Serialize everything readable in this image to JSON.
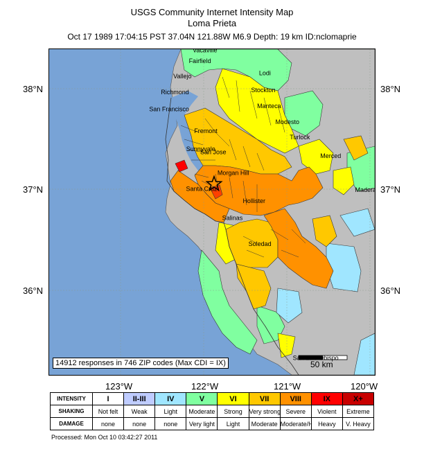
{
  "header": {
    "title": "USGS Community Internet Intensity Map",
    "subtitle": "Loma Prieta",
    "event_line": "Oct 17 1989 17:04:15 PST 37.04N 121.88W M6.9 Depth: 19 km ID:nclomaprie"
  },
  "axes": {
    "lat_labels": [
      "38°N",
      "37°N",
      "36°N"
    ],
    "lon_labels": [
      "123°W",
      "122°W",
      "121°W",
      "120°W"
    ]
  },
  "map": {
    "response_note": "14912 responses in 746 ZIP codes (Max CDI = IX)",
    "scale_label": "50 km",
    "cities": [
      {
        "name": "Vacaville",
        "lat": 38.36,
        "lon": -121.99
      },
      {
        "name": "Fairfield",
        "lat": 38.25,
        "lon": -122.05
      },
      {
        "name": "Vallejo",
        "lat": 38.1,
        "lon": -122.26
      },
      {
        "name": "Lodi",
        "lat": 38.13,
        "lon": -121.27
      },
      {
        "name": "Richmond",
        "lat": 37.94,
        "lon": -122.35
      },
      {
        "name": "Stockton",
        "lat": 37.96,
        "lon": -121.29
      },
      {
        "name": "San Francisco",
        "lat": 37.77,
        "lon": -122.42
      },
      {
        "name": "Manteca",
        "lat": 37.8,
        "lon": -121.22
      },
      {
        "name": "Modesto",
        "lat": 37.64,
        "lon": -121.0
      },
      {
        "name": "Fremont",
        "lat": 37.55,
        "lon": -121.98
      },
      {
        "name": "Turlock",
        "lat": 37.49,
        "lon": -120.85
      },
      {
        "name": "Sunnyvale",
        "lat": 37.37,
        "lon": -122.04
      },
      {
        "name": "San Jose",
        "lat": 37.34,
        "lon": -121.89
      },
      {
        "name": "Merced",
        "lat": 37.3,
        "lon": -120.48
      },
      {
        "name": "Morgan Hill",
        "lat": 37.13,
        "lon": -121.65
      },
      {
        "name": "Santa Cruz",
        "lat": 36.97,
        "lon": -122.03
      },
      {
        "name": "Madera",
        "lat": 36.96,
        "lon": -120.06
      },
      {
        "name": "Hollister",
        "lat": 36.85,
        "lon": -121.4
      },
      {
        "name": "Salinas",
        "lat": 36.68,
        "lon": -121.66
      },
      {
        "name": "Soledad",
        "lat": 36.42,
        "lon": -121.33
      },
      {
        "name": "San Luis Obispo",
        "lat": 35.28,
        "lon": -120.66
      }
    ],
    "epicenter": {
      "lat": 37.04,
      "lon": -121.88
    }
  },
  "legend": {
    "row_heads": [
      "INTENSITY",
      "SHAKING",
      "DAMAGE"
    ],
    "levels": [
      {
        "intensity": "I",
        "shaking": "Not felt",
        "damage": "none",
        "color": "#ffffff"
      },
      {
        "intensity": "II-III",
        "shaking": "Weak",
        "damage": "none",
        "color": "#bfccff"
      },
      {
        "intensity": "IV",
        "shaking": "Light",
        "damage": "none",
        "color": "#a0e6ff"
      },
      {
        "intensity": "V",
        "shaking": "Moderate",
        "damage": "Very light",
        "color": "#80ffa0"
      },
      {
        "intensity": "VI",
        "shaking": "Strong",
        "damage": "Light",
        "color": "#ffff00"
      },
      {
        "intensity": "VII",
        "shaking": "Very strong",
        "damage": "Moderate",
        "color": "#ffc800"
      },
      {
        "intensity": "VIII",
        "shaking": "Severe",
        "damage": "Moderate/Heavy",
        "color": "#ff9100"
      },
      {
        "intensity": "IX",
        "shaking": "Violent",
        "damage": "Heavy",
        "color": "#ff0000"
      },
      {
        "intensity": "X+",
        "shaking": "Extreme",
        "damage": "V. Heavy",
        "color": "#c80000"
      }
    ]
  },
  "footer": {
    "processed": "Processed: Mon Oct 10 03:42:27 2011"
  },
  "colors": {
    "ocean": "#78a3d6",
    "no_data": "#bfbfbf",
    "boundary": "#333333"
  }
}
